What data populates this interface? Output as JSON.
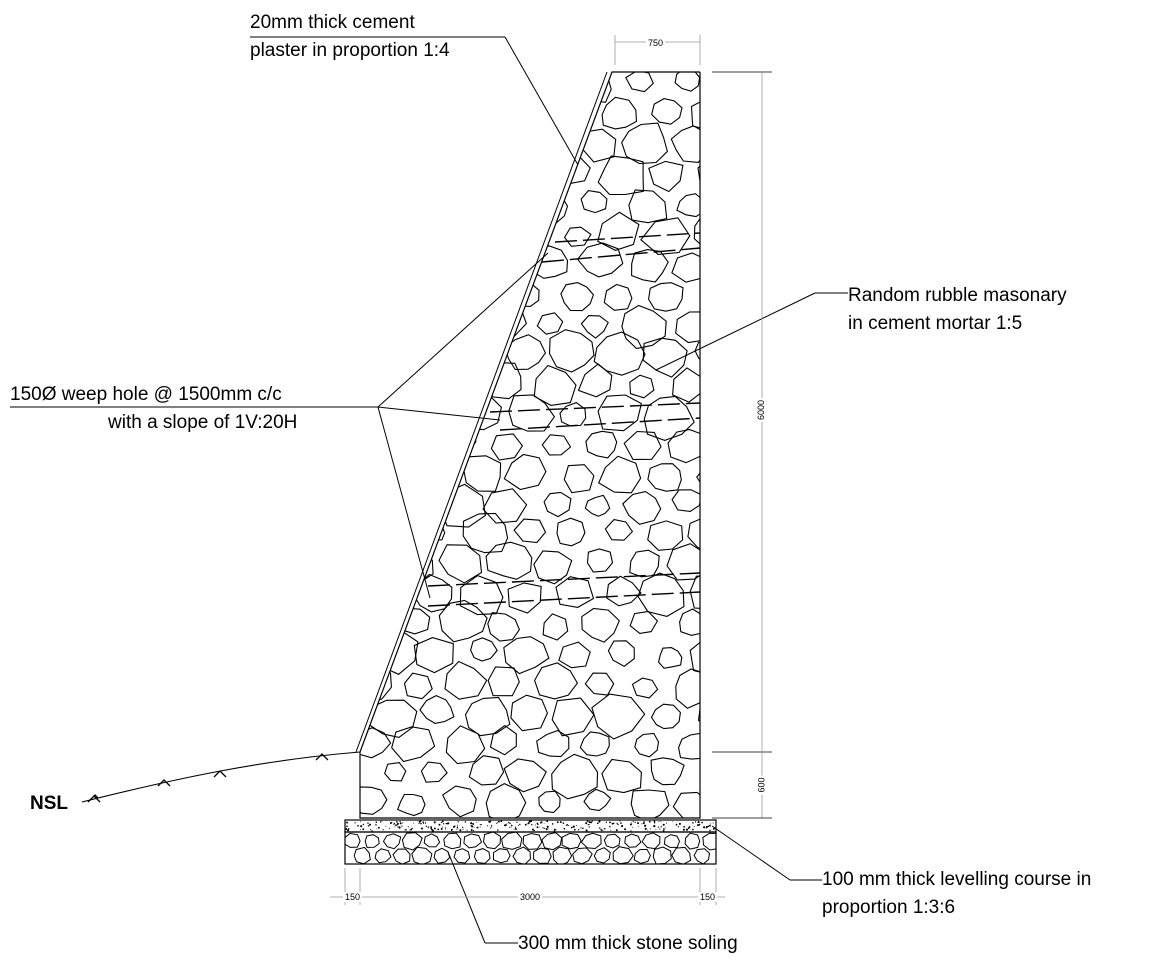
{
  "labels": {
    "plaster_line1": "20mm thick cement",
    "plaster_line2": "plaster in proportion 1:4",
    "masonry_line1": "Random rubble masonary",
    "masonry_line2": "in cement mortar 1:5",
    "weep_line1": "150Ø weep hole @ 1500mm c/c",
    "weep_line2": "with a slope of 1V:20H",
    "nsl": "NSL",
    "levelling_line1": "100 mm thick levelling course in",
    "levelling_line2": "proportion 1:3:6",
    "soling": "300 mm thick stone soling"
  },
  "dimensions": {
    "top_width": "750",
    "wall_height": "6000",
    "footing_depth": "600",
    "base_width": "3000",
    "left_offset": "150",
    "right_offset": "150"
  }
}
